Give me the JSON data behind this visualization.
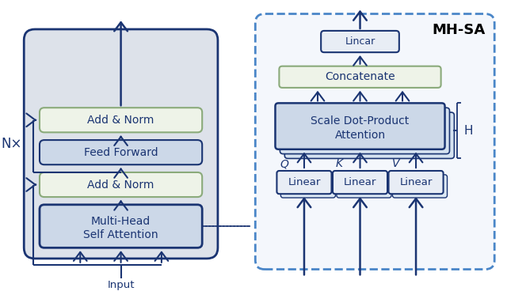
{
  "fig_width": 6.4,
  "fig_height": 3.68,
  "bg_color": "#ffffff",
  "outer_left_bg": "#dde2ea",
  "outer_left_edge": "#1a3472",
  "green_box_bg": "#eef3e8",
  "green_box_edge": "#8aaa7a",
  "blue_box_bg": "#ccd8e8",
  "blue_box_edge": "#1a3472",
  "dark_blue": "#1a3472",
  "dashed_box_edge": "#4a86c8",
  "dashed_box_bg": "#f4f7fc",
  "arrow_color": "#1a3472",
  "mhsa_label": "MH-SA",
  "nx_label": "N×",
  "h_label": "H",
  "input_label": "Input",
  "add_norm1_label": "Add & Norm",
  "feed_forward_label": "Feed Forward",
  "add_norm2_label": "Add & Norm",
  "mhsa_box_label1": "Multi-Head",
  "mhsa_box_label2": "Self Attention",
  "linear_top_label": "Lincar",
  "concatenate_label": "Concatenate",
  "sdpa_label1": "Scale Dot-Product",
  "sdpa_label2": "Attention",
  "linear_q_label": "Linear",
  "linear_k_label": "Linear",
  "linear_v_label": "Linear",
  "q_label": "Q",
  "k_label": "K",
  "v_label": "V"
}
